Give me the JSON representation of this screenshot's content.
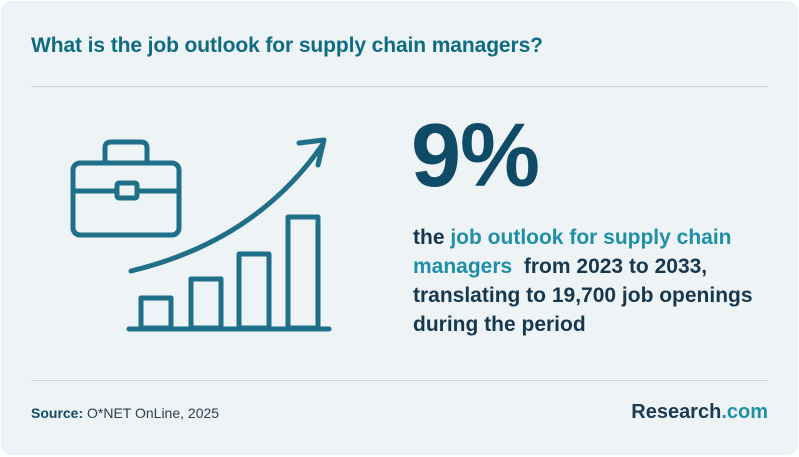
{
  "header": {
    "title": "What is the job outlook for supply chain managers?"
  },
  "stat": {
    "value": "9%",
    "text_prefix": "the ",
    "text_highlight": "job outlook for supply chain managers",
    "text_suffix": "  from 2023 to 2033, translating to 19,700 job openings during the period"
  },
  "illustration": {
    "icons": [
      "briefcase-icon",
      "rising-arrow-icon",
      "bar-chart-icon"
    ]
  },
  "footer": {
    "source_label": "Source:",
    "source_text": " O*NET OnLine, 2025",
    "brand_name": "Research",
    "brand_domain": ".com"
  },
  "colors": {
    "background": "#eef3f6",
    "title": "#0f6b83",
    "stat": "#0f4a66",
    "highlight": "#1f8fa8",
    "icon_stroke": "#1f6f88"
  }
}
